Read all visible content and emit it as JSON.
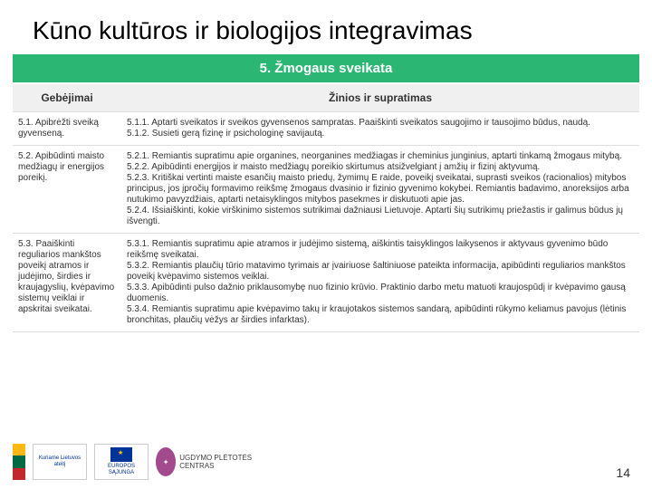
{
  "title": "Kūno kultūros ir biologijos integravimas",
  "section_header": "5. Žmogaus sveikata",
  "columns": {
    "c1": "Gebėjimai",
    "c2": "Žinios ir supratimas"
  },
  "rows": [
    {
      "c1": "5.1. Apibrėžti sveiką gyvenseną.",
      "c2": "5.1.1. Aptarti sveikatos ir sveikos gyvensenos sampratas. Paaiškinti sveikatos saugojimo ir tausojimo būdus, naudą.\n5.1.2. Susieti gerą fizinę ir psichologinę savijautą."
    },
    {
      "c1": "5.2. Apibūdinti maisto medžiagų ir energijos poreikį.",
      "c2": "5.2.1. Remiantis supratimu apie organines, neorganines medžiagas ir cheminius junginius, aptarti tinkamą žmogaus mitybą.\n5.2.2. Apibūdinti energijos ir maisto medžiagų poreikio skirtumus atsižvelgiant į amžių ir fizinį aktyvumą.\n5.2.3. Kritiškai vertinti maiste esančių maisto priedų, žymimų E raide, poveikį sveikatai, suprasti sveikos (racionalios) mitybos principus, jos įpročių formavimo reikšmę žmogaus dvasinio ir fizinio gyvenimo kokybei. Remiantis badavimo, anoreksijos arba nutukimo pavyzdžiais, aptarti netaisyklingos mitybos pasekmes ir diskutuoti apie jas.\n5.2.4. Išsiaiškinti, kokie virškinimo sistemos sutrikimai dažniausi Lietuvoje. Aptarti šių sutrikimų priežastis ir galimus būdus jų išvengti."
    },
    {
      "c1": "5.3. Paaiškinti reguliarios mankštos poveikį atramos ir judėjimo, širdies ir kraujagyslių, kvėpavimo sistemų veiklai ir apskritai sveikatai.",
      "c2": "5.3.1. Remiantis supratimu apie atramos ir judėjimo sistemą, aiškintis taisyklingos laikysenos ir aktyvaus gyvenimo būdo reikšmę sveikatai.\n5.3.2. Remiantis plaučių tūrio matavimo tyrimais ar įvairiuose šaltiniuose pateikta informacija, apibūdinti reguliarios mankštos poveikį kvėpavimo sistemos veiklai.\n5.3.3. Apibūdinti pulso dažnio priklausomybę nuo fizinio krūvio. Praktinio darbo metu matuoti kraujospūdį ir kvėpavimo gausą duomenis.\n5.3.4. Remiantis supratimu apie kvėpavimo takų ir kraujotakos sistemos sandarą, apibūdinti rūkymo keliamus pavojus (lėtinis bronchitas, plaučių vėžys ar širdies infarktas)."
    }
  ],
  "footer": {
    "logo1_line1": "Kuriame Lietuvos ateitį",
    "logo2_line1": "EUROPOS SĄJUNGA",
    "logo3_text": "UGDYMO PLĖTOTĖS CENTRAS"
  },
  "page_number": "14"
}
